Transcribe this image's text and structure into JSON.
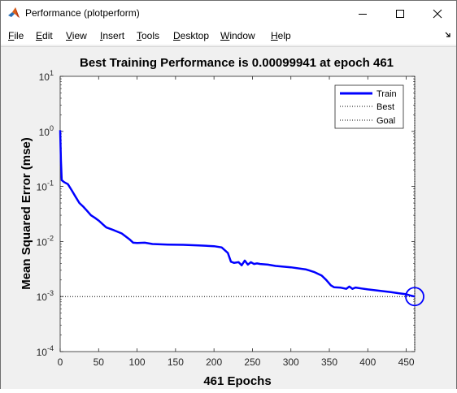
{
  "window": {
    "title": "Performance (plotperform)",
    "icon": "matlab-logo-icon"
  },
  "menu": [
    {
      "pre": "",
      "acc": "F",
      "post": "ile"
    },
    {
      "pre": "",
      "acc": "E",
      "post": "dit"
    },
    {
      "pre": "",
      "acc": "V",
      "post": "iew"
    },
    {
      "pre": "",
      "acc": "I",
      "post": "nsert"
    },
    {
      "pre": "",
      "acc": "T",
      "post": "ools"
    },
    {
      "pre": "",
      "acc": "D",
      "post": "esktop"
    },
    {
      "pre": "",
      "acc": "W",
      "post": "indow"
    },
    {
      "pre": "",
      "acc": "H",
      "post": "elp"
    }
  ],
  "chart_data": {
    "type": "line",
    "title": "Best Training Performance is 0.00099941 at epoch 461",
    "xlabel": "461 Epochs",
    "ylabel": "Mean Squared Error  (mse)",
    "xlim": [
      0,
      461
    ],
    "ylim": [
      0.0001,
      10
    ],
    "y_scale": "log",
    "x_ticks": [
      "0",
      "50",
      "100",
      "150",
      "200",
      "250",
      "300",
      "350",
      "400",
      "450"
    ],
    "x_tick_values": [
      0,
      50,
      100,
      150,
      200,
      250,
      300,
      350,
      400,
      450
    ],
    "y_ticks": [
      {
        "base": "10",
        "exp": "1",
        "value": 10
      },
      {
        "base": "10",
        "exp": "0",
        "value": 1
      },
      {
        "base": "10",
        "exp": "-1",
        "value": 0.1
      },
      {
        "base": "10",
        "exp": "-2",
        "value": 0.01
      },
      {
        "base": "10",
        "exp": "-3",
        "value": 0.001
      },
      {
        "base": "10",
        "exp": "-4",
        "value": 0.0001
      }
    ],
    "legend": [
      "Train",
      "Best",
      "Goal"
    ],
    "legend_position": "top-right",
    "series": [
      {
        "name": "Train",
        "color": "#0000ff",
        "x": [
          0,
          1,
          2,
          5,
          10,
          15,
          20,
          25,
          30,
          35,
          40,
          45,
          50,
          60,
          70,
          80,
          90,
          95,
          100,
          110,
          120,
          140,
          160,
          180,
          200,
          210,
          218,
          222,
          226,
          232,
          236,
          240,
          244,
          248,
          252,
          256,
          260,
          270,
          280,
          300,
          320,
          330,
          340,
          346,
          352,
          356,
          365,
          372,
          376,
          380,
          384,
          392,
          400,
          410,
          420,
          430,
          440,
          450,
          455,
          461
        ],
        "y": [
          1.05,
          0.3,
          0.13,
          0.12,
          0.11,
          0.085,
          0.065,
          0.05,
          0.043,
          0.036,
          0.03,
          0.027,
          0.024,
          0.018,
          0.016,
          0.014,
          0.011,
          0.0095,
          0.0094,
          0.0095,
          0.009,
          0.0088,
          0.0087,
          0.0085,
          0.0082,
          0.0078,
          0.0062,
          0.0043,
          0.0041,
          0.0042,
          0.0037,
          0.0045,
          0.0038,
          0.0042,
          0.0039,
          0.004,
          0.0039,
          0.0038,
          0.0036,
          0.0034,
          0.0031,
          0.0028,
          0.0024,
          0.002,
          0.0016,
          0.00148,
          0.00145,
          0.00138,
          0.00152,
          0.00138,
          0.00146,
          0.0014,
          0.00135,
          0.0013,
          0.00125,
          0.0012,
          0.00115,
          0.0011,
          0.00105,
          0.00099941
        ]
      },
      {
        "name": "Best",
        "epoch": 461,
        "value": 0.00099941,
        "color": "#000000",
        "style": "dotted"
      },
      {
        "name": "Goal",
        "value": 0.001,
        "color": "#000000",
        "style": "dotted"
      }
    ]
  }
}
